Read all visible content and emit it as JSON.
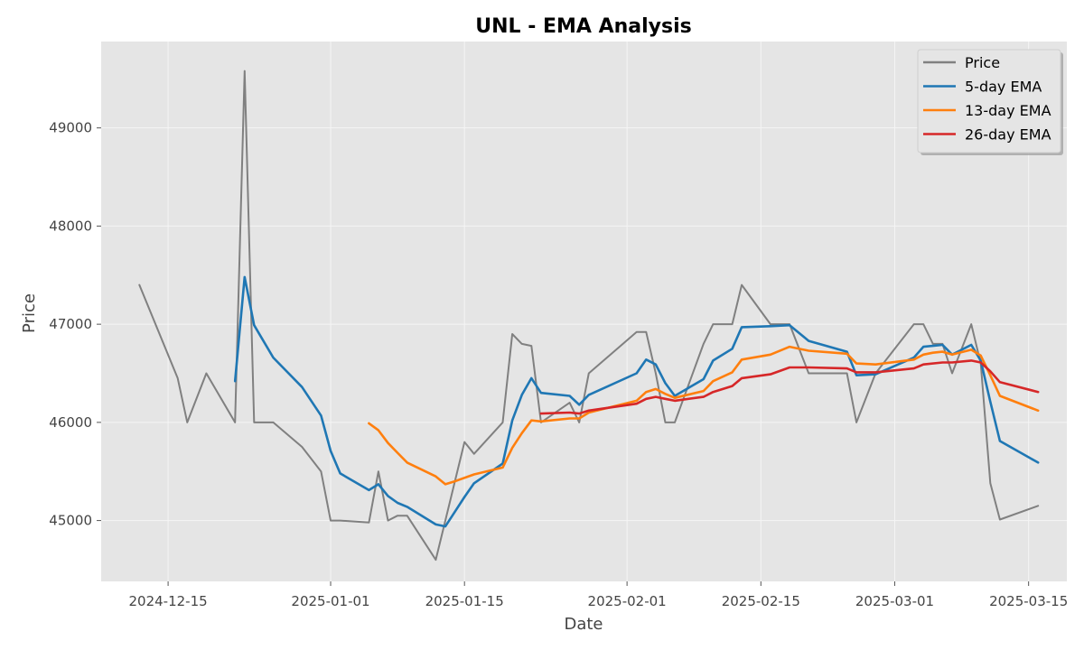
{
  "chart_data": {
    "type": "line",
    "title": "UNL - EMA Analysis",
    "xlabel": "Date",
    "ylabel": "Price",
    "x_axis_type": "date",
    "xlim": [
      "2024-12-08",
      "2025-03-19"
    ],
    "ylim": [
      44380,
      49880
    ],
    "x_ticks": [
      "2024-12-15",
      "2025-01-01",
      "2025-01-15",
      "2025-02-01",
      "2025-02-15",
      "2025-03-01",
      "2025-03-15"
    ],
    "y_ticks": [
      45000,
      46000,
      47000,
      48000,
      49000
    ],
    "grid": true,
    "legend_position": "top-right",
    "series": [
      {
        "name": "Price",
        "color": "#808080",
        "points": [
          [
            "2024-12-12",
            47400
          ],
          [
            "2024-12-16",
            46450
          ],
          [
            "2024-12-17",
            46000
          ],
          [
            "2024-12-19",
            46500
          ],
          [
            "2024-12-22",
            46000
          ],
          [
            "2024-12-23",
            49580
          ],
          [
            "2024-12-24",
            46000
          ],
          [
            "2024-12-26",
            46000
          ],
          [
            "2024-12-29",
            45750
          ],
          [
            "2024-12-31",
            45500
          ],
          [
            "2025-01-01",
            45000
          ],
          [
            "2025-01-02",
            45000
          ],
          [
            "2025-01-05",
            44980
          ],
          [
            "2025-01-06",
            45500
          ],
          [
            "2025-01-07",
            45000
          ],
          [
            "2025-01-08",
            45050
          ],
          [
            "2025-01-09",
            45050
          ],
          [
            "2025-01-12",
            44600
          ],
          [
            "2025-01-14",
            45400
          ],
          [
            "2025-01-15",
            45800
          ],
          [
            "2025-01-16",
            45680
          ],
          [
            "2025-01-19",
            46000
          ],
          [
            "2025-01-20",
            46900
          ],
          [
            "2025-01-21",
            46800
          ],
          [
            "2025-01-22",
            46780
          ],
          [
            "2025-01-23",
            46000
          ],
          [
            "2025-01-26",
            46200
          ],
          [
            "2025-01-27",
            46000
          ],
          [
            "2025-01-28",
            46500
          ],
          [
            "2025-02-02",
            46920
          ],
          [
            "2025-02-03",
            46920
          ],
          [
            "2025-02-04",
            46500
          ],
          [
            "2025-02-05",
            46000
          ],
          [
            "2025-02-06",
            46000
          ],
          [
            "2025-02-09",
            46800
          ],
          [
            "2025-02-10",
            47000
          ],
          [
            "2025-02-12",
            47000
          ],
          [
            "2025-02-13",
            47400
          ],
          [
            "2025-02-16",
            47000
          ],
          [
            "2025-02-18",
            47000
          ],
          [
            "2025-02-20",
            46500
          ],
          [
            "2025-02-24",
            46500
          ],
          [
            "2025-02-25",
            46000
          ],
          [
            "2025-02-27",
            46500
          ],
          [
            "2025-03-03",
            47000
          ],
          [
            "2025-03-04",
            47000
          ],
          [
            "2025-03-05",
            46800
          ],
          [
            "2025-03-06",
            46800
          ],
          [
            "2025-03-07",
            46500
          ],
          [
            "2025-03-09",
            47000
          ],
          [
            "2025-03-10",
            46600
          ],
          [
            "2025-03-11",
            45380
          ],
          [
            "2025-03-12",
            45010
          ],
          [
            "2025-03-16",
            45150
          ]
        ]
      },
      {
        "name": "5-day EMA",
        "color": "#1f77b4",
        "points": [
          [
            "2024-12-22",
            46420
          ],
          [
            "2024-12-23",
            47480
          ],
          [
            "2024-12-24",
            46990
          ],
          [
            "2024-12-26",
            46660
          ],
          [
            "2024-12-29",
            46360
          ],
          [
            "2024-12-31",
            46070
          ],
          [
            "2025-01-01",
            45710
          ],
          [
            "2025-01-02",
            45480
          ],
          [
            "2025-01-05",
            45310
          ],
          [
            "2025-01-06",
            45370
          ],
          [
            "2025-01-07",
            45250
          ],
          [
            "2025-01-08",
            45180
          ],
          [
            "2025-01-09",
            45140
          ],
          [
            "2025-01-12",
            44960
          ],
          [
            "2025-01-13",
            44940
          ],
          [
            "2025-01-14",
            45090
          ],
          [
            "2025-01-15",
            45240
          ],
          [
            "2025-01-16",
            45380
          ],
          [
            "2025-01-19",
            45580
          ],
          [
            "2025-01-20",
            46020
          ],
          [
            "2025-01-21",
            46280
          ],
          [
            "2025-01-22",
            46450
          ],
          [
            "2025-01-23",
            46300
          ],
          [
            "2025-01-26",
            46270
          ],
          [
            "2025-01-27",
            46180
          ],
          [
            "2025-01-28",
            46280
          ],
          [
            "2025-02-02",
            46500
          ],
          [
            "2025-02-03",
            46640
          ],
          [
            "2025-02-04",
            46590
          ],
          [
            "2025-02-05",
            46400
          ],
          [
            "2025-02-06",
            46270
          ],
          [
            "2025-02-09",
            46440
          ],
          [
            "2025-02-10",
            46630
          ],
          [
            "2025-02-12",
            46750
          ],
          [
            "2025-02-13",
            46970
          ],
          [
            "2025-02-16",
            46980
          ],
          [
            "2025-02-18",
            46990
          ],
          [
            "2025-02-20",
            46830
          ],
          [
            "2025-02-24",
            46720
          ],
          [
            "2025-02-25",
            46480
          ],
          [
            "2025-02-27",
            46490
          ],
          [
            "2025-03-03",
            46660
          ],
          [
            "2025-03-04",
            46770
          ],
          [
            "2025-03-05",
            46780
          ],
          [
            "2025-03-06",
            46790
          ],
          [
            "2025-03-07",
            46690
          ],
          [
            "2025-03-09",
            46790
          ],
          [
            "2025-03-10",
            46630
          ],
          [
            "2025-03-11",
            46210
          ],
          [
            "2025-03-12",
            45810
          ],
          [
            "2025-03-16",
            45590
          ]
        ]
      },
      {
        "name": "13-day EMA",
        "color": "#ff7f0e",
        "points": [
          [
            "2025-01-05",
            45990
          ],
          [
            "2025-01-06",
            45920
          ],
          [
            "2025-01-07",
            45790
          ],
          [
            "2025-01-08",
            45690
          ],
          [
            "2025-01-09",
            45590
          ],
          [
            "2025-01-12",
            45450
          ],
          [
            "2025-01-13",
            45370
          ],
          [
            "2025-01-14",
            45400
          ],
          [
            "2025-01-16",
            45470
          ],
          [
            "2025-01-19",
            45540
          ],
          [
            "2025-01-20",
            45740
          ],
          [
            "2025-01-21",
            45890
          ],
          [
            "2025-01-22",
            46020
          ],
          [
            "2025-01-23",
            46010
          ],
          [
            "2025-01-26",
            46040
          ],
          [
            "2025-01-27",
            46040
          ],
          [
            "2025-01-28",
            46100
          ],
          [
            "2025-02-02",
            46220
          ],
          [
            "2025-02-03",
            46310
          ],
          [
            "2025-02-04",
            46340
          ],
          [
            "2025-02-05",
            46290
          ],
          [
            "2025-02-06",
            46250
          ],
          [
            "2025-02-09",
            46320
          ],
          [
            "2025-02-10",
            46420
          ],
          [
            "2025-02-12",
            46510
          ],
          [
            "2025-02-13",
            46640
          ],
          [
            "2025-02-16",
            46690
          ],
          [
            "2025-02-18",
            46770
          ],
          [
            "2025-02-20",
            46730
          ],
          [
            "2025-02-24",
            46700
          ],
          [
            "2025-02-25",
            46600
          ],
          [
            "2025-02-27",
            46590
          ],
          [
            "2025-03-03",
            46640
          ],
          [
            "2025-03-04",
            46690
          ],
          [
            "2025-03-05",
            46710
          ],
          [
            "2025-03-06",
            46720
          ],
          [
            "2025-03-07",
            46690
          ],
          [
            "2025-03-09",
            46740
          ],
          [
            "2025-03-10",
            46680
          ],
          [
            "2025-03-11",
            46480
          ],
          [
            "2025-03-12",
            46270
          ],
          [
            "2025-03-16",
            46120
          ]
        ]
      },
      {
        "name": "26-day EMA",
        "color": "#d62728",
        "points": [
          [
            "2025-01-23",
            46090
          ],
          [
            "2025-01-26",
            46100
          ],
          [
            "2025-01-27",
            46090
          ],
          [
            "2025-01-28",
            46120
          ],
          [
            "2025-02-02",
            46190
          ],
          [
            "2025-02-03",
            46240
          ],
          [
            "2025-02-04",
            46260
          ],
          [
            "2025-02-05",
            46240
          ],
          [
            "2025-02-06",
            46220
          ],
          [
            "2025-02-09",
            46260
          ],
          [
            "2025-02-10",
            46310
          ],
          [
            "2025-02-12",
            46370
          ],
          [
            "2025-02-13",
            46450
          ],
          [
            "2025-02-16",
            46490
          ],
          [
            "2025-02-18",
            46560
          ],
          [
            "2025-02-20",
            46560
          ],
          [
            "2025-02-24",
            46550
          ],
          [
            "2025-02-25",
            46510
          ],
          [
            "2025-02-27",
            46510
          ],
          [
            "2025-03-03",
            46550
          ],
          [
            "2025-03-04",
            46590
          ],
          [
            "2025-03-06",
            46610
          ],
          [
            "2025-03-07",
            46610
          ],
          [
            "2025-03-09",
            46630
          ],
          [
            "2025-03-10",
            46610
          ],
          [
            "2025-03-11",
            46520
          ],
          [
            "2025-03-12",
            46410
          ],
          [
            "2025-03-16",
            46310
          ]
        ]
      }
    ]
  }
}
